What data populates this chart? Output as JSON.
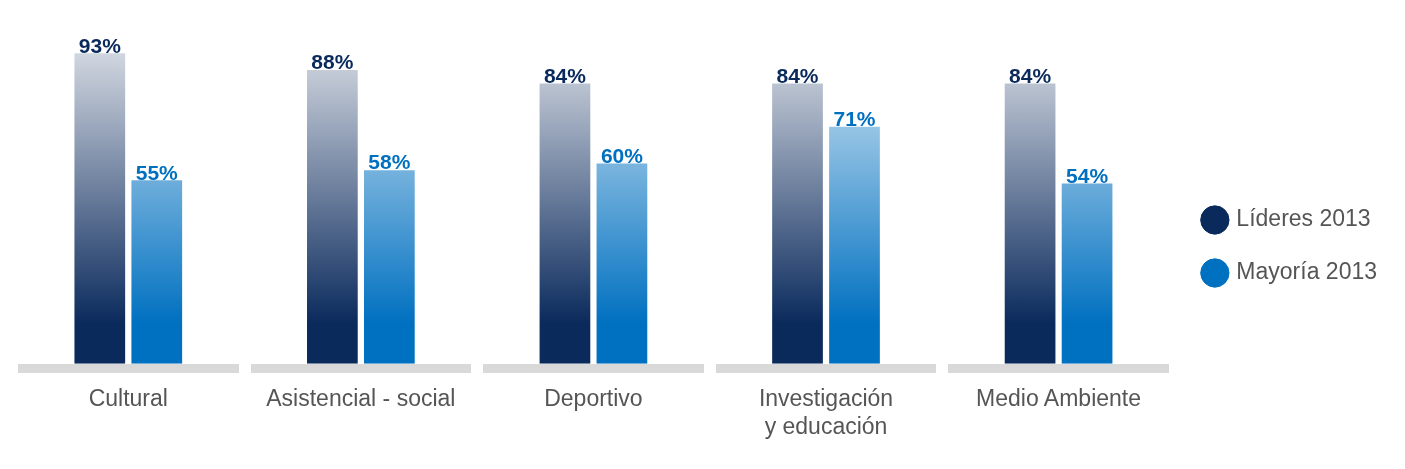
{
  "chart_data": {
    "type": "bar",
    "categories": [
      "Cultural",
      "Asistencial - social",
      "Deportivo",
      "Investigación y educación",
      "Medio Ambiente"
    ],
    "series": [
      {
        "name": "Líderes 2013",
        "color": "#0a2a5c",
        "values": [
          93,
          88,
          84,
          84,
          84
        ],
        "value_labels": [
          "93%",
          "88%",
          "84%",
          "84%",
          "84%"
        ]
      },
      {
        "name": "Mayoría 2013",
        "color": "#0070c0",
        "values": [
          55,
          58,
          60,
          71,
          54
        ],
        "value_labels": [
          "55%",
          "58%",
          "60%",
          "71%",
          "54%"
        ]
      }
    ],
    "legend": "right",
    "grid": false
  }
}
